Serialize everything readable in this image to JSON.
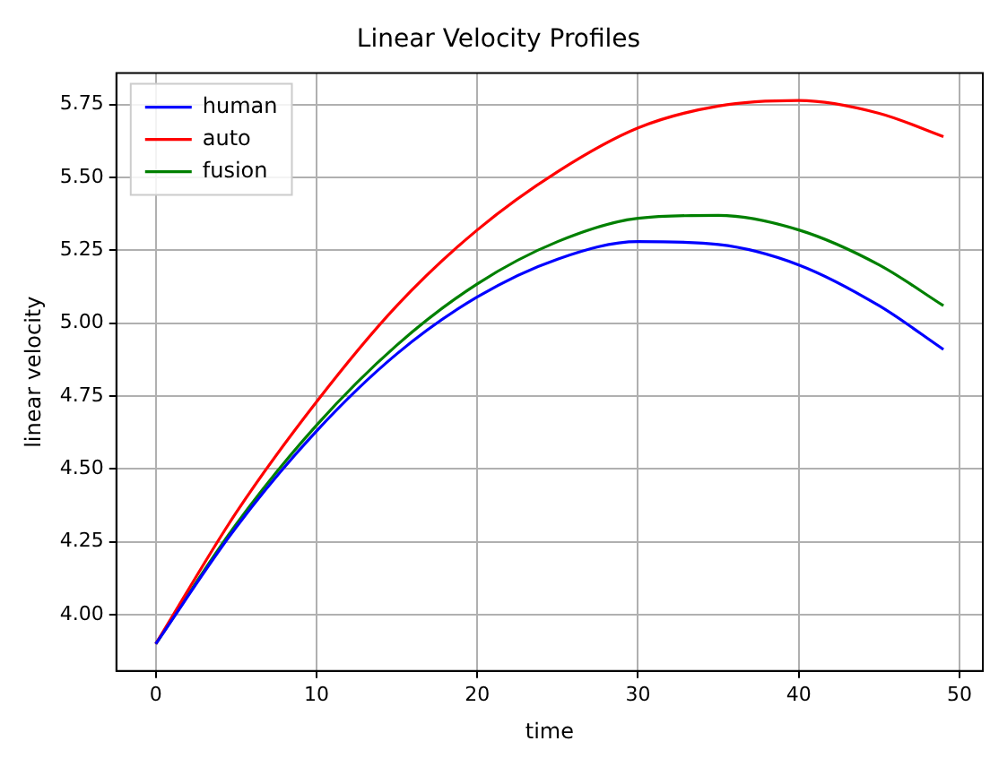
{
  "chart_data": {
    "type": "line",
    "title": "Linear Velocity Profiles",
    "xlabel": "time",
    "ylabel": "linear velocity",
    "x": [
      0,
      5,
      10,
      15,
      20,
      25,
      30,
      35,
      40,
      45,
      49
    ],
    "series": [
      {
        "name": "human",
        "color": "#0000ff",
        "values": [
          3.9,
          4.3,
          4.63,
          4.895,
          5.09,
          5.22,
          5.28,
          5.27,
          5.2,
          5.06,
          4.91
        ]
      },
      {
        "name": "auto",
        "color": "#ff0000",
        "values": [
          3.9,
          4.35,
          4.73,
          5.06,
          5.32,
          5.52,
          5.67,
          5.745,
          5.764,
          5.72,
          5.64
        ]
      },
      {
        "name": "fusion",
        "color": "#008000",
        "values": [
          3.9,
          4.31,
          4.65,
          4.925,
          5.135,
          5.28,
          5.36,
          5.37,
          5.32,
          5.2,
          5.06
        ]
      }
    ],
    "xlim": [
      -2.45,
      51.45
    ],
    "xticks": [
      0,
      10,
      20,
      30,
      40,
      50
    ],
    "ylim": [
      3.807,
      5.858
    ],
    "yticks": [
      {
        "value": 4.0,
        "label": "4.00"
      },
      {
        "value": 4.25,
        "label": "4.25"
      },
      {
        "value": 4.5,
        "label": "4.50"
      },
      {
        "value": 4.75,
        "label": "4.75"
      },
      {
        "value": 5.0,
        "label": "5.00"
      },
      {
        "value": 5.25,
        "label": "5.25"
      },
      {
        "value": 5.5,
        "label": "5.50"
      },
      {
        "value": 5.75,
        "label": "5.75"
      }
    ],
    "grid": true,
    "legend": "top left",
    "marker": "none",
    "line_style": "solid"
  }
}
